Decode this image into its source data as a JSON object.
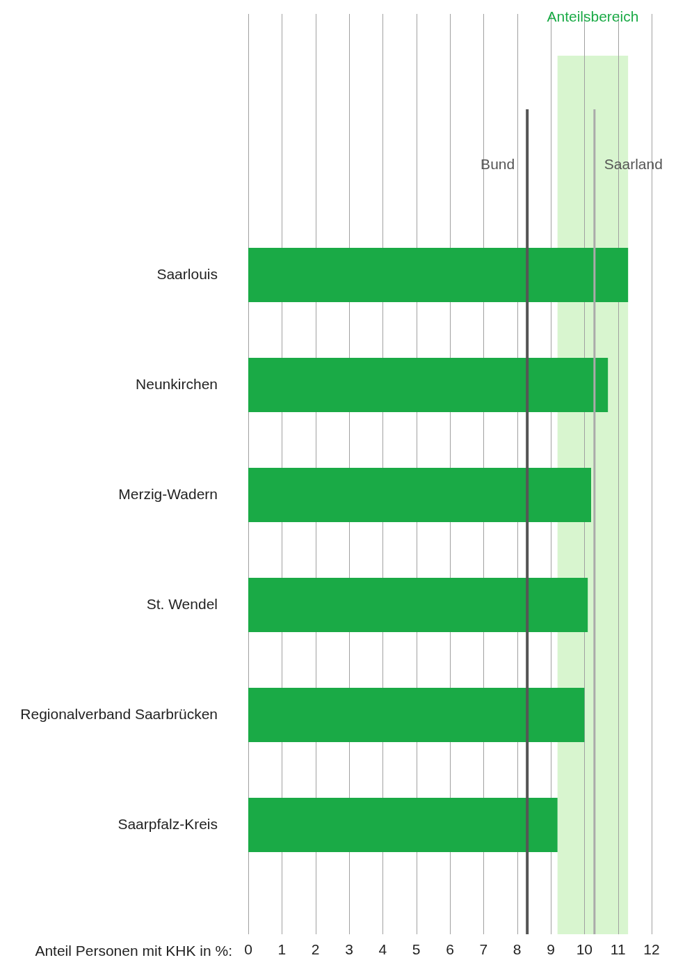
{
  "chart_data": {
    "type": "bar",
    "orientation": "horizontal",
    "categories": [
      "Saarlouis",
      "Neunkirchen",
      "Merzig-Wadern",
      "St. Wendel",
      "Regionalverband Saarbrücken",
      "Saarpfalz-Kreis"
    ],
    "values": [
      11.3,
      10.7,
      10.2,
      10.1,
      10.0,
      9.2
    ],
    "color": "#1aaa46",
    "xlabel": "Anteil Personen mit KHK in %:",
    "xlim": [
      0,
      12
    ],
    "xticks": [
      0,
      1,
      2,
      3,
      4,
      5,
      6,
      7,
      8,
      9,
      10,
      11,
      12
    ],
    "grid": "x",
    "legend": false,
    "ref_lines": [
      {
        "axis": "x",
        "value": 8.3,
        "label": "Bund",
        "color": "#555555"
      },
      {
        "axis": "x",
        "value": 10.3,
        "label": "Saarland",
        "color": "#aaaaaa"
      }
    ],
    "bands": [
      {
        "axis": "x",
        "from": 9.2,
        "to": 11.3,
        "label": "Anteilsbereich",
        "color": "#d8f5cf"
      }
    ]
  }
}
